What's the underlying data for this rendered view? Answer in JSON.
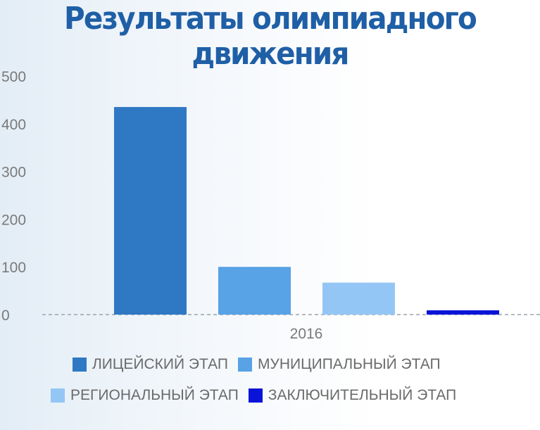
{
  "chart_data": {
    "type": "bar",
    "title": "Результаты олимпиадного движения",
    "title_lines": [
      "Результаты олимпиадного",
      "движения"
    ],
    "categories": [
      "2016"
    ],
    "series": [
      {
        "name": "ЛИЦЕЙСКИЙ ЭТАП",
        "values": [
          435
        ],
        "color": "#2f78c4"
      },
      {
        "name": "МУНИЦИПАЛЬНЫЙ ЭТАП",
        "values": [
          100
        ],
        "color": "#58a2e6"
      },
      {
        "name": "РЕГИОНАЛЬНЫЙ ЭТАП",
        "values": [
          67
        ],
        "color": "#94c6f5"
      },
      {
        "name": "ЗАКЛЮЧИТЕЛЬНЫЙ ЭТАП",
        "values": [
          9
        ],
        "color": "#0a14d8"
      }
    ],
    "yticks": [
      0,
      100,
      200,
      300,
      400,
      500
    ],
    "ylim": [
      0,
      500
    ],
    "grid": false,
    "legend_position": "bottom"
  }
}
